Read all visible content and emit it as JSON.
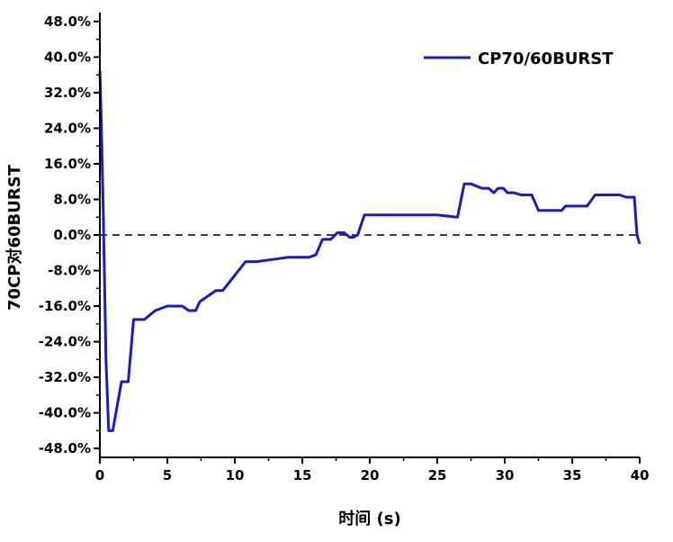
{
  "chart_data": {
    "type": "line",
    "title": "",
    "xlabel": "时间 (s)",
    "ylabel": "70CP对60BURST",
    "xlim": [
      0,
      40
    ],
    "ylim": [
      -50,
      50
    ],
    "x_ticks": [
      0,
      5,
      10,
      15,
      20,
      25,
      30,
      35,
      40
    ],
    "x_tick_labels": [
      "0",
      "5",
      "10",
      "15",
      "20",
      "25",
      "30",
      "35",
      "40"
    ],
    "y_ticks": [
      48,
      40,
      32,
      24,
      16,
      8,
      0,
      -8,
      -16,
      -24,
      -32,
      -40,
      -48
    ],
    "y_tick_labels": [
      "48.0%",
      "40.0%",
      "32.0%",
      "24.0%",
      "16.0%",
      "8.0%",
      "0.0%",
      "-8.0%",
      "-16.0%",
      "-24.0%",
      "-32.0%",
      "-40.0%",
      "-48.0%"
    ],
    "grid": false,
    "legend_position": "top-right",
    "reference_line": {
      "y": 0,
      "style": "dashed",
      "color": "#000000"
    },
    "series": [
      {
        "name": "CP70/60BURST",
        "color": "#1a1acd",
        "x": [
          0.0,
          0.1,
          0.25,
          0.45,
          0.65,
          0.95,
          1.6,
          2.1,
          2.5,
          3.3,
          4.1,
          5.0,
          6.1,
          6.6,
          7.1,
          7.4,
          8.6,
          9.1,
          10.8,
          11.6,
          12.8,
          14.0,
          15.5,
          16.0,
          16.5,
          17.1,
          17.6,
          17.9,
          18.1,
          18.5,
          18.8,
          19.1,
          19.6,
          21.5,
          25.0,
          26.5,
          27.0,
          27.5,
          28.3,
          28.8,
          29.2,
          29.5,
          29.9,
          30.2,
          30.7,
          31.2,
          32.0,
          32.5,
          34.2,
          34.5,
          35.5,
          36.1,
          36.7,
          38.5,
          39.0,
          39.6,
          39.8,
          40.0
        ],
        "values": [
          37.0,
          26.0,
          5.0,
          -28.0,
          -44.0,
          -44.0,
          -33.0,
          -33.0,
          -19.0,
          -19.0,
          -17.0,
          -16.0,
          -16.0,
          -17.0,
          -17.0,
          -15.0,
          -12.5,
          -12.5,
          -6.0,
          -6.0,
          -5.5,
          -5.0,
          -5.0,
          -4.5,
          -1.0,
          -1.0,
          0.5,
          0.5,
          0.5,
          -0.5,
          -0.5,
          0.0,
          4.5,
          4.5,
          4.5,
          4.0,
          11.5,
          11.5,
          10.5,
          10.5,
          9.5,
          10.5,
          10.5,
          9.5,
          9.5,
          9.0,
          9.0,
          5.5,
          5.5,
          6.5,
          6.5,
          6.5,
          9.0,
          9.0,
          8.5,
          8.5,
          0.0,
          -2.0
        ]
      }
    ]
  }
}
